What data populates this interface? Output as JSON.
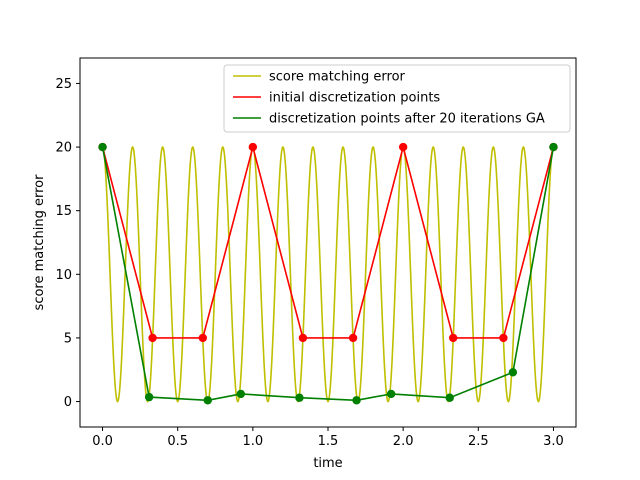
{
  "chart_data": {
    "type": "line",
    "title": "",
    "xlabel": "time",
    "ylabel": "score matching error",
    "xlim": [
      -0.15,
      3.15
    ],
    "ylim": [
      -2,
      27
    ],
    "xticks": [
      0.0,
      0.5,
      1.0,
      1.5,
      2.0,
      2.5,
      3.0
    ],
    "xtick_labels": [
      "0.0",
      "0.5",
      "1.0",
      "1.5",
      "2.0",
      "2.5",
      "3.0"
    ],
    "yticks": [
      0,
      5,
      10,
      15,
      20,
      25
    ],
    "ytick_labels": [
      "0",
      "5",
      "10",
      "15",
      "20",
      "25"
    ],
    "grid": false,
    "legend_position": "top-right",
    "series": [
      {
        "name": "score matching error",
        "color": "#bfbf00",
        "kind": "curve",
        "formula": "10*(1+cos(2*pi*t/0.2))",
        "x_range": [
          0,
          3
        ],
        "amplitude": 10,
        "offset": 10,
        "period": 0.2,
        "samples": 1500
      },
      {
        "name": "initial discretization points",
        "color": "#ff0000",
        "kind": "markers-line",
        "x": [
          0.0,
          0.333,
          0.667,
          1.0,
          1.333,
          1.667,
          2.0,
          2.333,
          2.667,
          3.0
        ],
        "y": [
          20,
          5,
          5,
          20,
          5,
          5,
          20,
          5,
          5,
          20
        ]
      },
      {
        "name": "discretization points after 20 iterations GA",
        "color": "#008000",
        "kind": "markers-line",
        "x": [
          0.0,
          0.31,
          0.7,
          0.92,
          1.31,
          1.69,
          1.92,
          2.31,
          2.73,
          3.0
        ],
        "y": [
          20,
          0.35,
          0.1,
          0.6,
          0.3,
          0.1,
          0.6,
          0.3,
          2.3,
          20
        ]
      }
    ]
  }
}
